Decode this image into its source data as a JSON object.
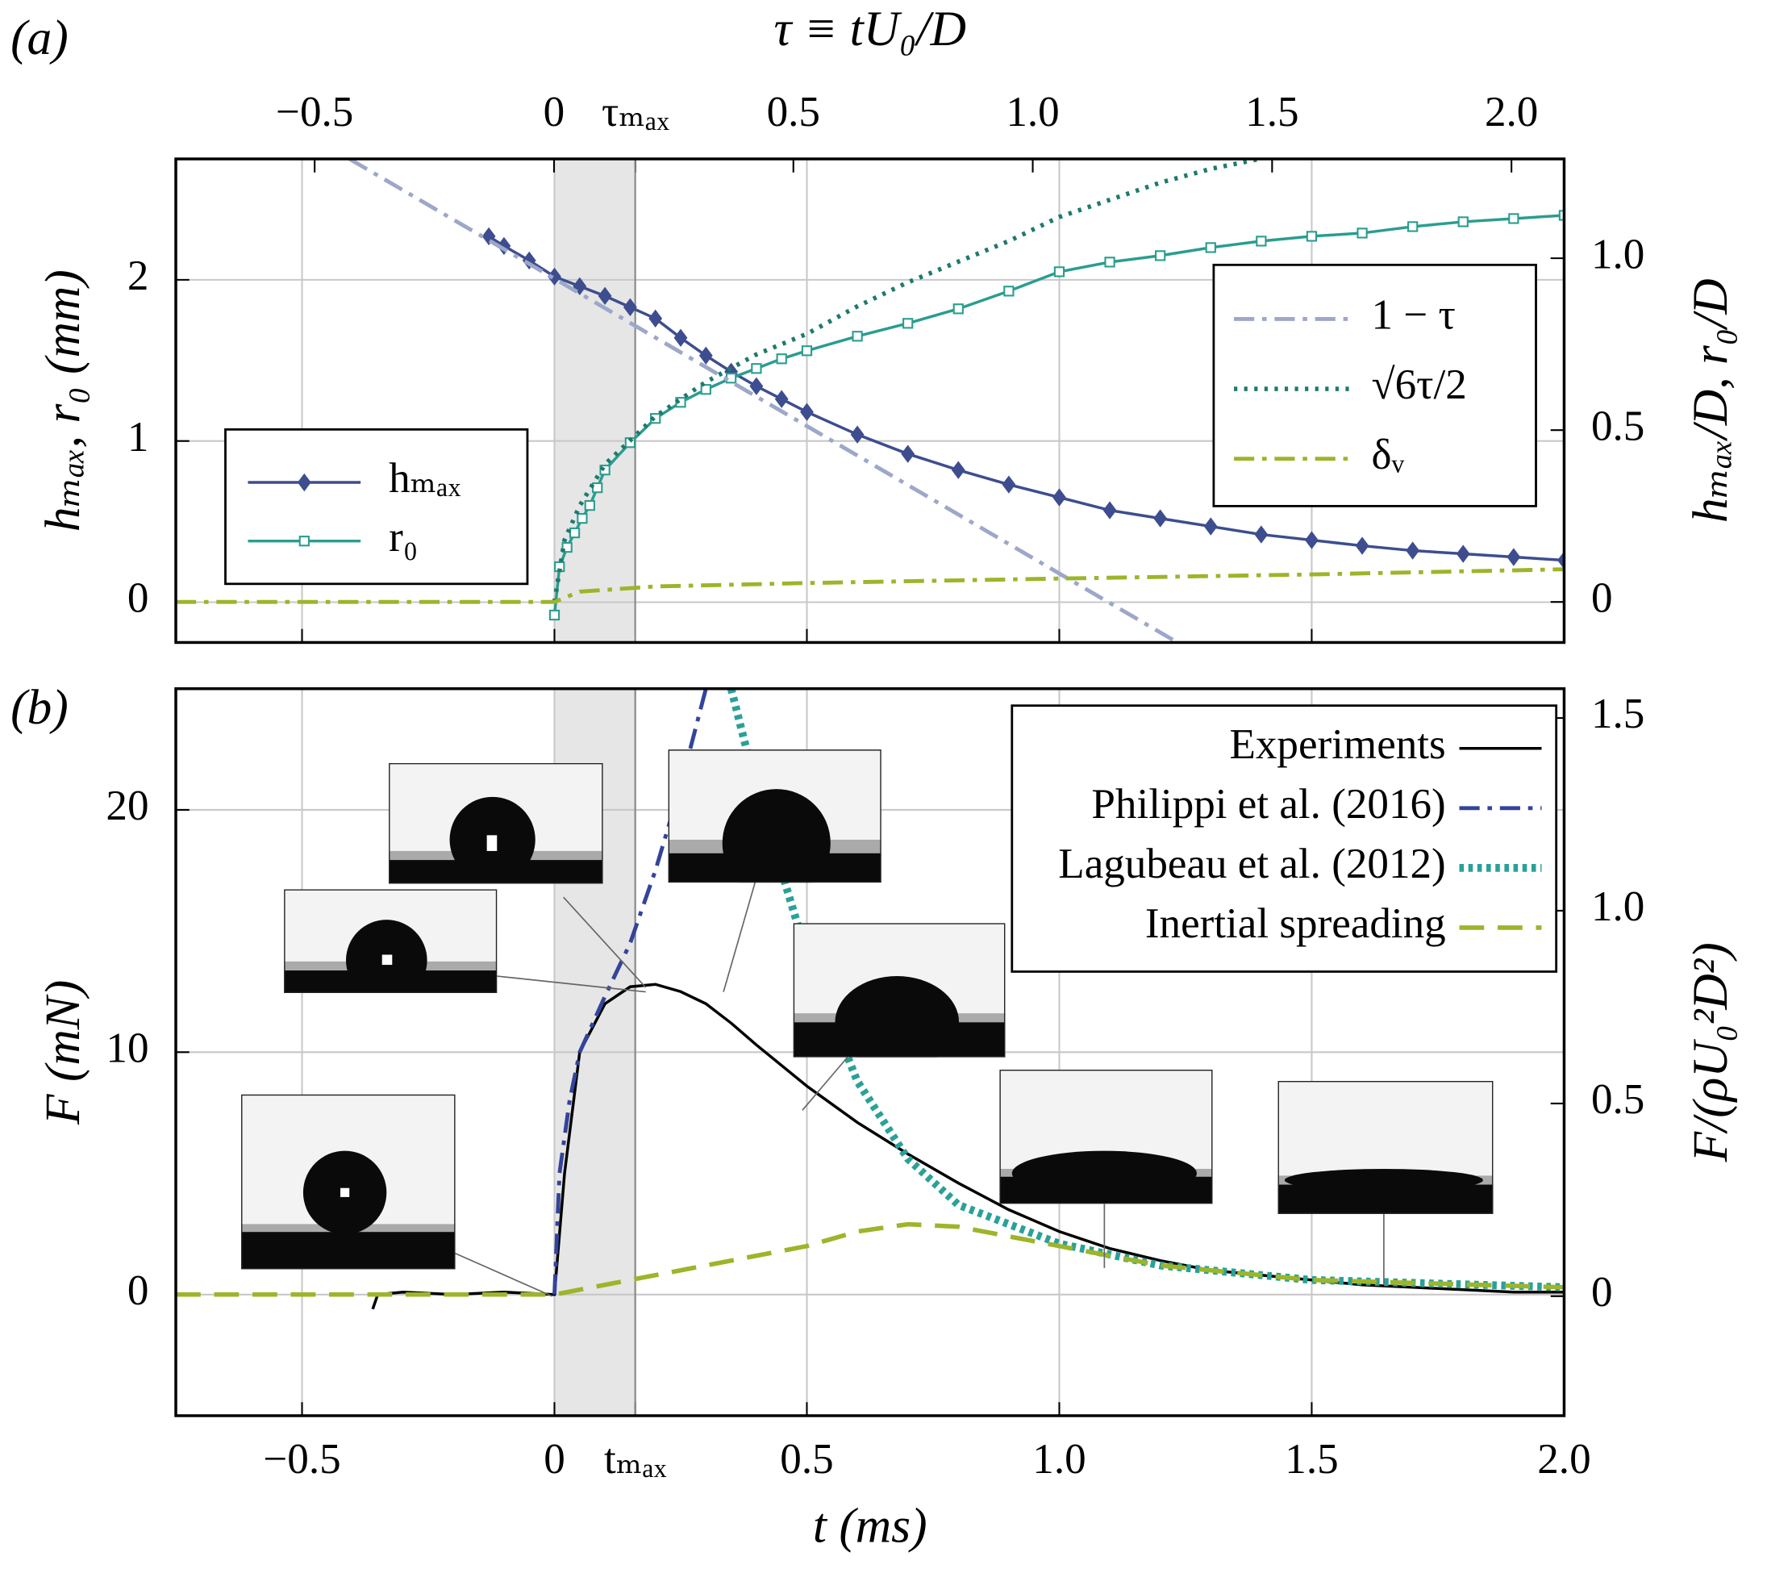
{
  "chart_data": [
    {
      "type": "line",
      "panel_label": "(a)",
      "x2label": "τ ≡ tU₀/D",
      "ylabel": "hₘₐₓ, r₀ (mm)",
      "y2label": "hₘₐₓ/D, r₀/D",
      "xlim": [
        -0.75,
        2.0
      ],
      "xticks": [
        -0.5,
        0,
        0.5,
        1,
        1.5,
        2
      ],
      "xticklabels": false,
      "x2lim": [
        -0.79,
        2.11
      ],
      "x2ticks": [
        {
          "value": -0.5,
          "label": "−0.5"
        },
        0,
        {
          "value": 0.17,
          "label": "τₘₐₓ"
        },
        0.5,
        {
          "value": 1,
          "label": "1.0"
        },
        1.5,
        {
          "value": 2,
          "label": "2.0"
        }
      ],
      "ylim": [
        -0.25,
        2.75
      ],
      "yticks": [
        0,
        1,
        2
      ],
      "y2lim": [
        -0.118,
        1.289
      ],
      "y2ticks": [
        0,
        0.5,
        {
          "value": 1,
          "label": "1.0"
        }
      ],
      "grid": true,
      "shade": [
        0,
        0.16
      ],
      "series": [
        {
          "name": "hₘₐₓ",
          "color": "#3d4d8f",
          "style": "solid",
          "marker": "diamond",
          "axis": "y",
          "legend": "left",
          "x": [
            -0.13,
            -0.1,
            -0.05,
            0,
            0.05,
            0.1,
            0.15,
            0.2,
            0.25,
            0.3,
            0.35,
            0.4,
            0.45,
            0.5,
            0.6,
            0.7,
            0.8,
            0.9,
            1.0,
            1.1,
            1.2,
            1.3,
            1.4,
            1.5,
            1.6,
            1.7,
            1.8,
            1.9,
            2.0
          ],
          "values": [
            2.27,
            2.21,
            2.12,
            2.02,
            1.96,
            1.9,
            1.83,
            1.76,
            1.64,
            1.53,
            1.43,
            1.34,
            1.26,
            1.18,
            1.04,
            0.92,
            0.82,
            0.73,
            0.65,
            0.57,
            0.52,
            0.47,
            0.42,
            0.385,
            0.35,
            0.32,
            0.3,
            0.28,
            0.26
          ]
        },
        {
          "name": "r₀",
          "color": "#2a9d8f",
          "style": "solid",
          "marker": "square",
          "axis": "y",
          "legend": "left",
          "x": [
            0,
            0.01,
            0.025,
            0.04,
            0.055,
            0.07,
            0.085,
            0.1,
            0.15,
            0.2,
            0.25,
            0.3,
            0.35,
            0.4,
            0.45,
            0.5,
            0.6,
            0.7,
            0.8,
            0.9,
            1.0,
            1.1,
            1.2,
            1.3,
            1.4,
            1.5,
            1.6,
            1.7,
            1.8,
            1.9,
            2.0
          ],
          "values": [
            -0.08,
            0.22,
            0.34,
            0.43,
            0.52,
            0.6,
            0.71,
            0.82,
            0.99,
            1.14,
            1.24,
            1.32,
            1.39,
            1.45,
            1.51,
            1.56,
            1.65,
            1.73,
            1.82,
            1.93,
            2.05,
            2.11,
            2.15,
            2.2,
            2.24,
            2.27,
            2.29,
            2.33,
            2.36,
            2.38,
            2.4
          ]
        },
        {
          "name": "1 − τ",
          "color": "#9da7c9",
          "style": "dashdot",
          "axis": "y2",
          "legend": "right",
          "x": [
            -0.406,
            1.234
          ],
          "values": [
            1.289,
            -0.118
          ]
        },
        {
          "name": "√6τ/2",
          "color": "#1e7a6c",
          "style": "dotted",
          "axis": "y2",
          "legend": "right",
          "x": [
            0,
            0.02,
            0.05,
            0.1,
            0.2,
            0.3,
            0.4,
            0.5,
            0.6,
            0.7,
            0.8,
            0.9,
            1.0,
            1.1,
            1.2,
            1.3,
            1.4
          ],
          "values": [
            0,
            0.18,
            0.28,
            0.4,
            0.54,
            0.64,
            0.72,
            0.78,
            0.86,
            0.93,
            0.99,
            1.05,
            1.12,
            1.17,
            1.22,
            1.26,
            1.29
          ]
        },
        {
          "name": "δᵥ",
          "color": "#9cb52a",
          "style": "dashdot",
          "axis": "y2",
          "legend": "right",
          "x": [
            -0.75,
            0,
            0.05,
            0.2,
            0.5,
            1.0,
            1.5,
            2.0
          ],
          "values": [
            0,
            0,
            0.03,
            0.045,
            0.055,
            0.068,
            0.08,
            0.095
          ]
        }
      ]
    },
    {
      "type": "line",
      "panel_label": "(b)",
      "xlabel": "t (ms)",
      "ylabel": "F (mN)",
      "y2label": "F/(ρU₀²D²)",
      "xlim": [
        -0.75,
        2.0
      ],
      "xticks": [
        {
          "value": -0.5,
          "label": "−0.5"
        },
        0,
        {
          "value": 0.16,
          "label": "tₘₐₓ"
        },
        0.5,
        {
          "value": 1,
          "label": "1.0"
        },
        1.5,
        {
          "value": 2,
          "label": "2.0"
        }
      ],
      "ylim": [
        -5,
        25
      ],
      "yticks": [
        0,
        10,
        20
      ],
      "y2lim": [
        -0.31,
        1.576
      ],
      "y2ticks": [
        0,
        0.5,
        {
          "value": 1,
          "label": "1.0"
        },
        1.5
      ],
      "grid": true,
      "shade": [
        0,
        0.16
      ],
      "legend": "upper right",
      "series": [
        {
          "name": "Experiments",
          "color": "#000000",
          "style": "solid",
          "axis": "y",
          "x": [
            -0.36,
            -0.35,
            -0.3,
            -0.2,
            -0.1,
            0,
            0.02,
            0.05,
            0.1,
            0.15,
            0.2,
            0.25,
            0.3,
            0.35,
            0.4,
            0.5,
            0.6,
            0.7,
            0.8,
            0.9,
            1.0,
            1.1,
            1.2,
            1.3,
            1.4,
            1.5,
            1.6,
            1.7,
            1.8,
            1.9,
            2.0
          ],
          "values": [
            -0.6,
            0,
            0.1,
            0,
            0.1,
            0,
            5,
            10,
            12,
            12.7,
            12.8,
            12.5,
            12,
            11.2,
            10.3,
            8.6,
            7.1,
            5.8,
            4.6,
            3.5,
            2.6,
            1.9,
            1.4,
            1.0,
            0.8,
            0.6,
            0.4,
            0.3,
            0.2,
            0.1,
            0.1
          ]
        },
        {
          "name": "Philippi et al. (2016)",
          "color": "#33449a",
          "style": "dashdot",
          "axis": "y",
          "x": [
            0,
            0.01,
            0.03,
            0.05,
            0.1,
            0.15,
            0.2,
            0.25,
            0.3
          ],
          "values": [
            0,
            5,
            8,
            10,
            12.3,
            14.5,
            17.5,
            21,
            25
          ]
        },
        {
          "name": "Lagubeau et al. (2012)",
          "color": "#2aa198",
          "style": "heavy-dotted",
          "axis": "y",
          "x": [
            0.35,
            0.4,
            0.5,
            0.6,
            0.7,
            0.8,
            1.0,
            1.2,
            1.5,
            2.0
          ],
          "values": [
            25,
            20.9,
            14,
            8.8,
            5.6,
            3.7,
            2.1,
            1.2,
            0.6,
            0.3
          ]
        },
        {
          "name": "Inertial spreading",
          "color": "#9cb52a",
          "style": "dashed",
          "axis": "y",
          "x": [
            -0.75,
            0,
            0.1,
            0.25,
            0.5,
            0.6,
            0.7,
            0.8,
            1.0,
            1.2,
            1.5,
            2.0
          ],
          "values": [
            0,
            0,
            0.4,
            1.0,
            2.0,
            2.6,
            2.9,
            2.8,
            2.0,
            1.2,
            0.6,
            0.3
          ]
        }
      ]
    }
  ]
}
